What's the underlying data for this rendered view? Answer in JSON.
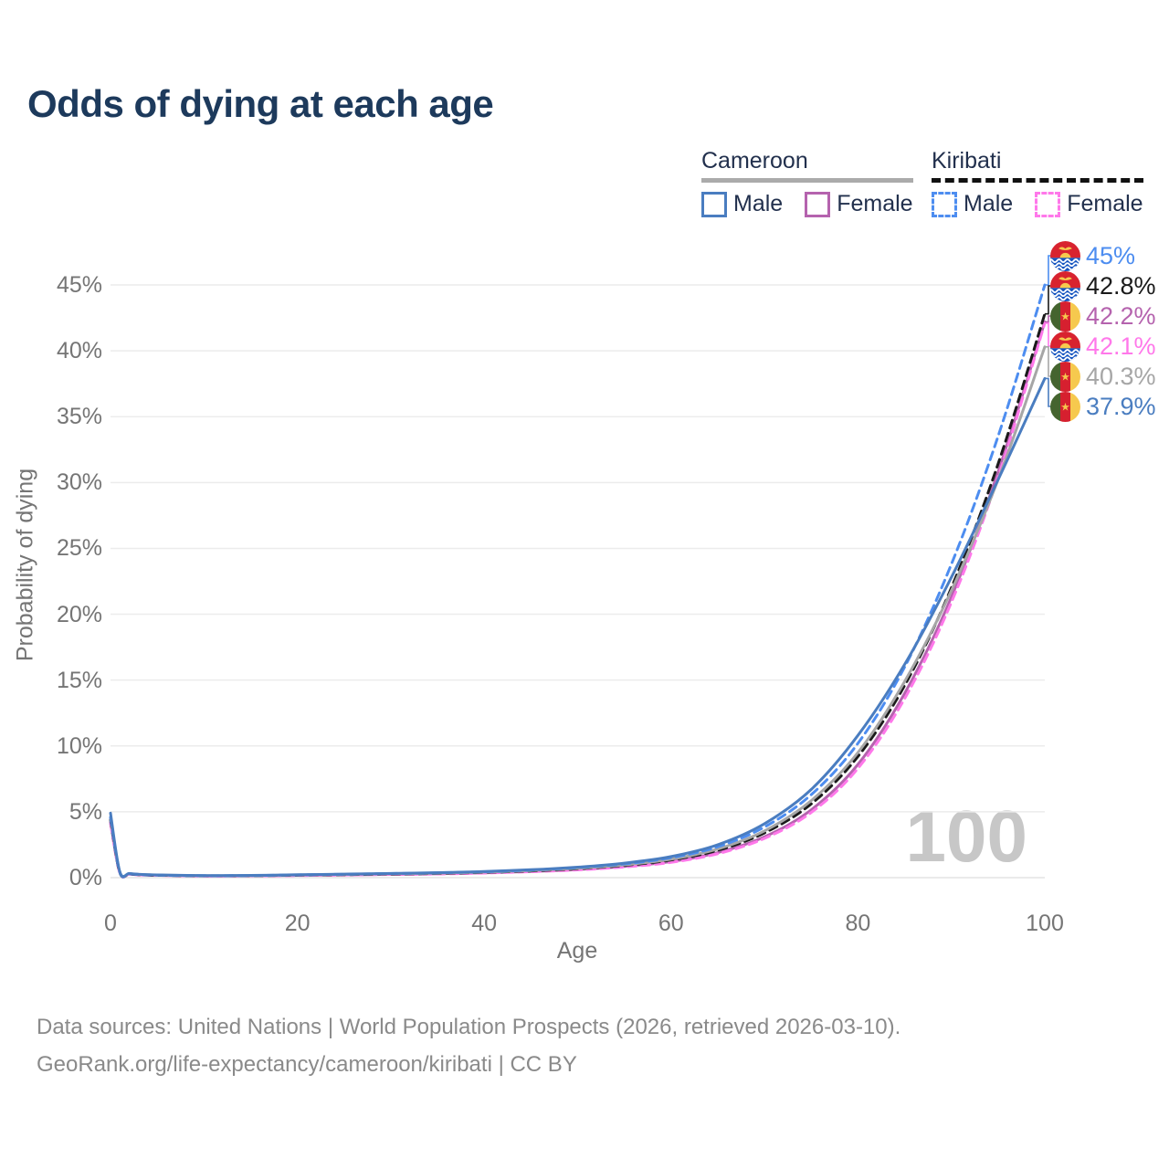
{
  "title": "Odds of dying at each age",
  "legend": {
    "groups": [
      {
        "name": "Cameroon",
        "style": "solid",
        "items": [
          {
            "label": "Male",
            "color": "#4a7dc0"
          },
          {
            "label": "Female",
            "color": "#b563ae"
          }
        ]
      },
      {
        "name": "Kiribati",
        "style": "dashed",
        "items": [
          {
            "label": "Male",
            "color": "#4d8df0"
          },
          {
            "label": "Female",
            "color": "#ff78ea"
          }
        ]
      }
    ]
  },
  "watermark": "100",
  "footer": {
    "line1": "Data sources: United Nations | World Population Prospects (2026, retrieved 2026-03-10).",
    "line2": "GeoRank.org/life-expectancy/cameroon/kiribati | CC BY"
  },
  "chart_data": {
    "type": "line",
    "title": "Odds of dying at each age",
    "xlabel": "Age",
    "ylabel": "Probability of dying",
    "x_ticks": [
      "0",
      "20",
      "40",
      "60",
      "80",
      "100"
    ],
    "y_ticks": [
      "0%",
      "5%",
      "10%",
      "15%",
      "20%",
      "25%",
      "30%",
      "35%",
      "40%",
      "45%"
    ],
    "xlim": [
      0,
      100
    ],
    "ylim": [
      0,
      45
    ],
    "grid": "horizontal",
    "legend_position": "top-right",
    "ages": [
      0,
      1,
      2,
      3,
      4,
      5,
      10,
      15,
      20,
      25,
      30,
      35,
      40,
      45,
      50,
      55,
      60,
      65,
      70,
      75,
      80,
      85,
      90,
      95,
      100
    ],
    "series": [
      {
        "name": "Cameroon Female",
        "country": "cameroon",
        "sex": "female",
        "color": "#b563ae",
        "dash": false,
        "values": [
          4.2,
          0.38,
          0.27,
          0.22,
          0.19,
          0.18,
          0.13,
          0.14,
          0.17,
          0.21,
          0.25,
          0.3,
          0.37,
          0.47,
          0.62,
          0.85,
          1.22,
          1.9,
          3.1,
          5.15,
          8.6,
          14.0,
          21.3,
          30.8,
          42.2
        ]
      },
      {
        "name": "Kiribati Female",
        "country": "kiribati",
        "sex": "female",
        "color": "#ff78ea",
        "dash": true,
        "values": [
          4.1,
          0.35,
          0.26,
          0.21,
          0.18,
          0.17,
          0.12,
          0.13,
          0.16,
          0.2,
          0.24,
          0.28,
          0.35,
          0.45,
          0.59,
          0.81,
          1.16,
          1.82,
          2.98,
          4.95,
          8.3,
          13.6,
          20.9,
          30.4,
          42.1
        ]
      },
      {
        "name": "Kiribati Both sexes",
        "country": "kiribati",
        "sex": "both",
        "color": "#1a1a1a",
        "dash": true,
        "values": [
          4.4,
          0.38,
          0.28,
          0.23,
          0.2,
          0.18,
          0.14,
          0.15,
          0.19,
          0.23,
          0.27,
          0.32,
          0.4,
          0.51,
          0.68,
          0.93,
          1.34,
          2.08,
          3.4,
          5.6,
          9.2,
          14.6,
          22.0,
          31.4,
          42.8
        ]
      },
      {
        "name": "Cameroon Both sexes",
        "country": "cameroon",
        "sex": "both",
        "color": "#a6a6a6",
        "dash": false,
        "values": [
          4.55,
          0.42,
          0.3,
          0.25,
          0.22,
          0.2,
          0.15,
          0.16,
          0.2,
          0.25,
          0.29,
          0.34,
          0.42,
          0.54,
          0.71,
          0.97,
          1.4,
          2.18,
          3.55,
          5.85,
          9.5,
          14.9,
          21.8,
          30.2,
          40.3
        ]
      },
      {
        "name": "Kiribati Male",
        "country": "kiribati",
        "sex": "male",
        "color": "#4d8df0",
        "dash": true,
        "values": [
          4.6,
          0.4,
          0.29,
          0.24,
          0.21,
          0.19,
          0.15,
          0.16,
          0.21,
          0.26,
          0.31,
          0.37,
          0.45,
          0.58,
          0.77,
          1.05,
          1.52,
          2.35,
          3.85,
          6.3,
          10.2,
          16.0,
          23.8,
          33.5,
          45.0
        ]
      },
      {
        "name": "Cameroon Male",
        "country": "cameroon",
        "sex": "male",
        "color": "#4a7dc0",
        "dash": false,
        "values": [
          4.9,
          0.45,
          0.32,
          0.26,
          0.23,
          0.21,
          0.16,
          0.17,
          0.22,
          0.27,
          0.32,
          0.38,
          0.47,
          0.6,
          0.8,
          1.1,
          1.6,
          2.5,
          4.1,
          6.7,
          10.8,
          16.2,
          22.8,
          30.2,
          37.9
        ]
      }
    ],
    "end_labels": [
      {
        "flag": "kiribati",
        "text": "45%",
        "value": 45.0,
        "color": "#4d8df0",
        "series": "Kiribati Male"
      },
      {
        "flag": "kiribati",
        "text": "42.8%",
        "value": 42.8,
        "color": "#1a1a1a",
        "series": "Kiribati Both sexes"
      },
      {
        "flag": "cameroon",
        "text": "42.2%",
        "value": 42.2,
        "color": "#b563ae",
        "series": "Cameroon Female"
      },
      {
        "flag": "kiribati",
        "text": "42.1%",
        "value": 42.1,
        "color": "#ff78ea",
        "series": "Kiribati Female"
      },
      {
        "flag": "cameroon",
        "text": "40.3%",
        "value": 40.3,
        "color": "#a6a6a6",
        "series": "Cameroon Both sexes"
      },
      {
        "flag": "cameroon",
        "text": "37.9%",
        "value": 37.9,
        "color": "#4a7dc0",
        "series": "Cameroon Male"
      }
    ]
  }
}
